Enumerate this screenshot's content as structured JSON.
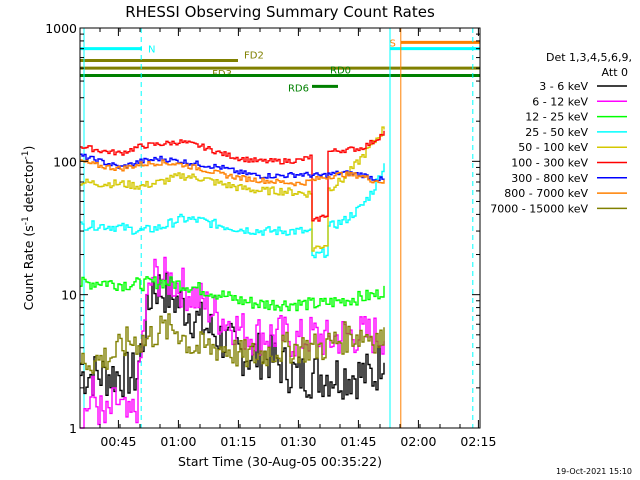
{
  "chart_data": {
    "type": "line",
    "title": "RHESSI Observing Summary Count Rates",
    "xlabel": "Start Time (30-Aug-05 00:35:22)",
    "ylabel_main": "Count Rate (s",
    "ylabel_exp1": "-1",
    "ylabel_mid": " detector",
    "ylabel_exp2": "-1",
    "ylabel_end": ")",
    "x_unit": "minutes since 00:35:22",
    "xlim": [
      0,
      100
    ],
    "ylim": [
      1,
      1000
    ],
    "yscale": "log",
    "x_ticks": [
      {
        "label": "00:45",
        "value": 9.6
      },
      {
        "label": "01:00",
        "value": 24.6
      },
      {
        "label": "01:15",
        "value": 39.6
      },
      {
        "label": "01:30",
        "value": 54.6
      },
      {
        "label": "01:45",
        "value": 69.6
      },
      {
        "label": "02:00",
        "value": 84.6
      },
      {
        "label": "02:15",
        "value": 99.6
      }
    ],
    "y_ticks": [
      {
        "label": "1",
        "value": 1
      },
      {
        "label": "10",
        "value": 10
      },
      {
        "label": "100",
        "value": 100
      },
      {
        "label": "1000",
        "value": 1000
      }
    ],
    "legend_header": [
      "Det 1,3,4,5,6,9,",
      "Att 0"
    ],
    "series": [
      {
        "name": "3 - 6 keV",
        "color": "#000000",
        "x": [
          0,
          5,
          10,
          14,
          18,
          22,
          26,
          30,
          34,
          38,
          42,
          46,
          50,
          54,
          58,
          62,
          66,
          70,
          73.5,
          76
        ],
        "y": [
          2.5,
          2.5,
          2.5,
          2.5,
          12,
          10,
          8,
          6,
          5,
          4,
          3.5,
          3.5,
          3,
          2.5,
          2.5,
          2.5,
          2.5,
          2.5,
          2.5,
          4
        ]
      },
      {
        "name": "6 - 12 keV",
        "color": "#ff00ff",
        "x": [
          0,
          3,
          6,
          9,
          12,
          14,
          16,
          18,
          22,
          26,
          30,
          34,
          38,
          42,
          46,
          50,
          54,
          58,
          62,
          66,
          70,
          74,
          76
        ],
        "y": [
          1.1,
          1.8,
          1.1,
          1.6,
          1.1,
          1.5,
          7,
          14,
          13,
          11,
          9,
          7,
          6,
          5,
          5,
          5,
          4.5,
          5,
          4.5,
          5,
          5,
          5,
          5
        ]
      },
      {
        "name": "12 - 25 keV",
        "color": "#00ff00",
        "x": [
          0,
          5,
          10,
          15,
          20,
          25,
          30,
          35,
          40,
          45,
          50,
          55,
          60,
          65,
          70,
          74,
          76
        ],
        "y": [
          12,
          12.5,
          12,
          12,
          12.5,
          12,
          11,
          10,
          9,
          8.5,
          8.5,
          8.5,
          8.5,
          9,
          9.5,
          10,
          11
        ]
      },
      {
        "name": "25 - 50 keV",
        "color": "#00ffff",
        "x": [
          0,
          5,
          10,
          15,
          20,
          25,
          30,
          35,
          40,
          45,
          50,
          55,
          57.5,
          58,
          61.5,
          62,
          66,
          70,
          73,
          76
        ],
        "y": [
          33,
          33,
          32,
          30,
          32,
          37,
          36,
          33,
          31,
          30,
          30,
          30,
          29,
          19,
          21,
          32,
          36,
          45,
          60,
          95
        ]
      },
      {
        "name": "50 - 100 keV",
        "color": "#d4c800",
        "x": [
          0,
          5,
          10,
          15,
          20,
          25,
          30,
          35,
          40,
          45,
          50,
          55,
          57.5,
          58,
          61.5,
          62,
          66,
          70,
          73,
          76
        ],
        "y": [
          70,
          68,
          68,
          65,
          70,
          78,
          75,
          68,
          63,
          60,
          60,
          58,
          57,
          22,
          24,
          62,
          75,
          105,
          135,
          180
        ]
      },
      {
        "name": "100 - 300 keV",
        "color": "#ff0000",
        "x": [
          0,
          5,
          10,
          15,
          20,
          25,
          30,
          35,
          40,
          45,
          50,
          55,
          57.5,
          58,
          61.5,
          62,
          66,
          70,
          73,
          76
        ],
        "y": [
          130,
          120,
          115,
          130,
          135,
          140,
          130,
          115,
          105,
          100,
          100,
          102,
          108,
          35,
          40,
          118,
          122,
          125,
          140,
          165
        ]
      },
      {
        "name": "300 - 800 keV",
        "color": "#0000ff",
        "x": [
          0,
          5,
          10,
          15,
          20,
          25,
          30,
          35,
          40,
          45,
          50,
          55,
          60,
          65,
          70,
          73,
          76
        ],
        "y": [
          110,
          100,
          90,
          100,
          105,
          100,
          95,
          90,
          82,
          78,
          78,
          80,
          78,
          82,
          80,
          75,
          72
        ]
      },
      {
        "name": "800 - 7000 keV",
        "color": "#ff8000",
        "x": [
          0,
          5,
          10,
          15,
          20,
          25,
          30,
          35,
          40,
          45,
          50,
          55,
          60,
          65,
          70,
          73,
          76
        ],
        "y": [
          100,
          92,
          88,
          95,
          98,
          95,
          88,
          80,
          75,
          72,
          70,
          68,
          75,
          80,
          78,
          72,
          70
        ]
      },
      {
        "name": "7000 - 15000 keV",
        "color": "#808000",
        "x": [
          0,
          4,
          8,
          12,
          16,
          20,
          24,
          28,
          32,
          36,
          40,
          44,
          48,
          52,
          56,
          60,
          64,
          68,
          72,
          76
        ],
        "y": [
          3.2,
          3.2,
          3.5,
          4.5,
          4.5,
          5.5,
          5.5,
          4,
          4,
          4,
          3.5,
          3.5,
          3.8,
          4,
          4,
          4,
          4.5,
          5,
          5,
          4.5
        ]
      }
    ],
    "flag_bars": [
      {
        "label": "N",
        "color": "#00ffff",
        "x_start": 0,
        "x_end": 15.5,
        "level": 700
      },
      {
        "label": "FD2",
        "color": "#808000",
        "x_start": 0,
        "x_end": 39.5,
        "level": 570
      },
      {
        "label": "FD3",
        "color": "#808000",
        "x_start": 0,
        "x_end": 100,
        "level": 500
      },
      {
        "label": "RD0",
        "color": "#008000",
        "x_start": 0,
        "x_end": 100,
        "level": 440
      },
      {
        "label": "RD6",
        "color": "#008000",
        "x_start": 58,
        "x_end": 64.5,
        "level": 365
      },
      {
        "label": "S",
        "color": "#ff8000",
        "x_start": 80.2,
        "x_end": 100,
        "level": 780
      },
      {
        "label": "",
        "color": "#00ffff",
        "x_start": 77.5,
        "x_end": 100,
        "level": 700
      }
    ],
    "vertical_lines": [
      {
        "x": 1.0,
        "color": "#00ffff",
        "style": "solid"
      },
      {
        "x": 15.3,
        "color": "#00ffff",
        "style": "dashed"
      },
      {
        "x": 77.5,
        "color": "#00ffff",
        "style": "solid"
      },
      {
        "x": 80.2,
        "color": "#ff8000",
        "style": "solid"
      },
      {
        "x": 98.2,
        "color": "#00ffff",
        "style": "dashed"
      }
    ]
  },
  "footer_date": "19-Oct-2021 15:10"
}
